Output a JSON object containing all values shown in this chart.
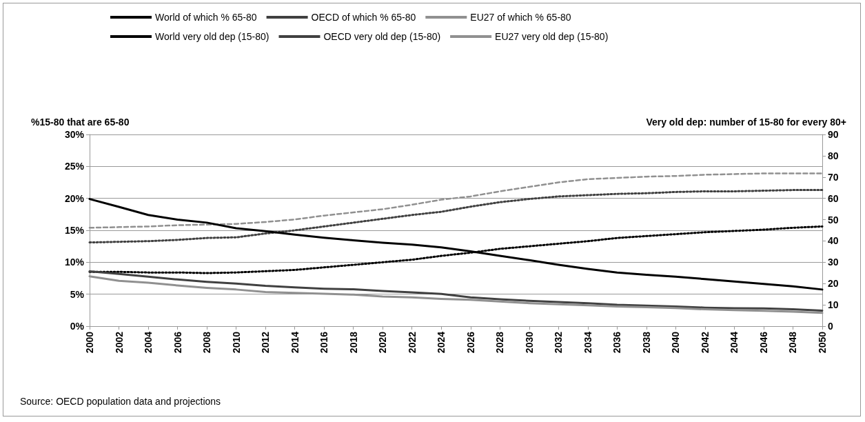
{
  "chart_data": {
    "type": "line",
    "ylabel": "%15-80 that are 65-80",
    "y2label": "Very old dep: number of 15-80 for every 80+",
    "annotations": [
      "Source: OECD population data and projections"
    ],
    "x": [
      2000,
      2002,
      2004,
      2006,
      2008,
      2010,
      2012,
      2014,
      2016,
      2018,
      2020,
      2022,
      2024,
      2026,
      2028,
      2030,
      2032,
      2034,
      2036,
      2038,
      2040,
      2042,
      2044,
      2046,
      2048,
      2050
    ],
    "series": [
      {
        "name": "World of which % 65-80",
        "color": "#000000",
        "line_style": "dotted",
        "values": [
          8.5,
          8.5,
          8.4,
          8.4,
          8.3,
          8.4,
          8.6,
          8.8,
          9.2,
          9.6,
          10.0,
          10.4,
          11.0,
          11.5,
          12.1,
          12.5,
          12.9,
          13.3,
          13.8,
          14.1,
          14.4,
          14.7,
          14.9,
          15.1,
          15.4,
          15.6
        ]
      },
      {
        "name": "OECD of which % 65-80",
        "color": "#404040",
        "line_style": "dotted",
        "values": [
          13.1,
          13.2,
          13.3,
          13.5,
          13.8,
          13.9,
          14.5,
          15.0,
          15.6,
          16.2,
          16.8,
          17.4,
          17.9,
          18.7,
          19.4,
          19.9,
          20.3,
          20.5,
          20.7,
          20.8,
          21.0,
          21.1,
          21.1,
          21.2,
          21.3,
          21.3
        ]
      },
      {
        "name": "EU27 of which % 65-80",
        "color": "#909090",
        "line_style": "dashed",
        "values": [
          15.4,
          15.5,
          15.6,
          15.8,
          15.9,
          16.0,
          16.3,
          16.7,
          17.3,
          17.8,
          18.3,
          19.0,
          19.8,
          20.3,
          21.1,
          21.8,
          22.5,
          23.0,
          23.2,
          23.4,
          23.5,
          23.7,
          23.8,
          23.9,
          23.9,
          23.9
        ]
      },
      {
        "name": "World very old dep (15-80)",
        "color": "#000000",
        "line_style": "solid",
        "axis": "y2",
        "values": [
          59.7,
          56,
          52.2,
          50,
          48.6,
          46,
          44.6,
          43,
          41.5,
          40.3,
          39.2,
          38.3,
          37,
          35.1,
          33,
          31,
          28.8,
          26.9,
          25.2,
          24.1,
          23.2,
          22.1,
          21,
          19.8,
          18.7,
          17.2
        ]
      },
      {
        "name": "OECD very old dep (15-80)",
        "color": "#404040",
        "line_style": "solid",
        "axis": "y2",
        "values": [
          25.7,
          24.5,
          23.2,
          21.9,
          20.8,
          20,
          18.9,
          18.2,
          17.6,
          17.3,
          16.5,
          15.9,
          15.1,
          13.5,
          12.6,
          11.9,
          11.3,
          10.8,
          10,
          9.6,
          9.2,
          8.7,
          8.4,
          8.3,
          7.9,
          7.3
        ]
      },
      {
        "name": "EU27 very old dep (15-80)",
        "color": "#909090",
        "line_style": "solid",
        "axis": "y2",
        "values": [
          23.4,
          21.3,
          20.4,
          19.1,
          18,
          17.2,
          16,
          15.6,
          15.2,
          14.8,
          13.9,
          13.5,
          12.8,
          12.4,
          11.6,
          10.8,
          10.3,
          9.8,
          9.2,
          8.9,
          8.5,
          7.9,
          7.5,
          7.2,
          6.8,
          6.2
        ]
      }
    ],
    "xlim": [
      2000,
      2050
    ],
    "xticks": [
      2000,
      2002,
      2004,
      2006,
      2008,
      2010,
      2012,
      2014,
      2016,
      2018,
      2020,
      2022,
      2024,
      2026,
      2028,
      2030,
      2032,
      2034,
      2036,
      2038,
      2040,
      2042,
      2044,
      2046,
      2048,
      2050
    ],
    "ylim": [
      0,
      30
    ],
    "yticks": [
      {
        "value": 0,
        "label": "0%"
      },
      {
        "value": 5,
        "label": "5%"
      },
      {
        "value": 10,
        "label": "10%"
      },
      {
        "value": 15,
        "label": "15%"
      },
      {
        "value": 20,
        "label": "20%"
      },
      {
        "value": 25,
        "label": "25%"
      },
      {
        "value": 30,
        "label": "30%"
      }
    ],
    "y2lim": [
      0,
      90
    ],
    "y2ticks": [
      0,
      10,
      20,
      30,
      40,
      50,
      60,
      70,
      80,
      90
    ],
    "grid": "y",
    "legend": "top",
    "marker": "none"
  }
}
